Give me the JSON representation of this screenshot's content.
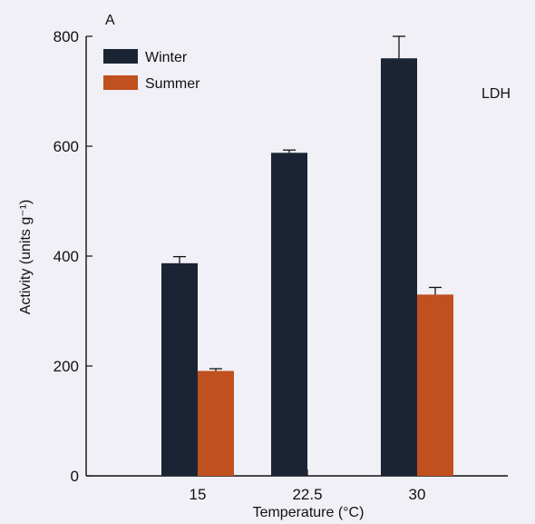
{
  "chart_data": {
    "type": "bar",
    "panel_label": "A",
    "annotation": "LDH",
    "categories": [
      "15",
      "22.5",
      "30"
    ],
    "series": [
      {
        "name": "Winter",
        "color": "#1a2434",
        "values": [
          387,
          588,
          760
        ],
        "errors": [
          12,
          5,
          40
        ]
      },
      {
        "name": "Summer",
        "color": "#c0501e",
        "values": [
          191,
          null,
          330
        ],
        "errors": [
          4,
          null,
          13
        ]
      }
    ],
    "xlabel": "Temperature (°C)",
    "ylabel": "Activity (units g⁻¹)",
    "ylim": [
      0,
      800
    ],
    "yticks": [
      0,
      200,
      400,
      600,
      800
    ],
    "legend_position": "top-left",
    "grid": false
  }
}
